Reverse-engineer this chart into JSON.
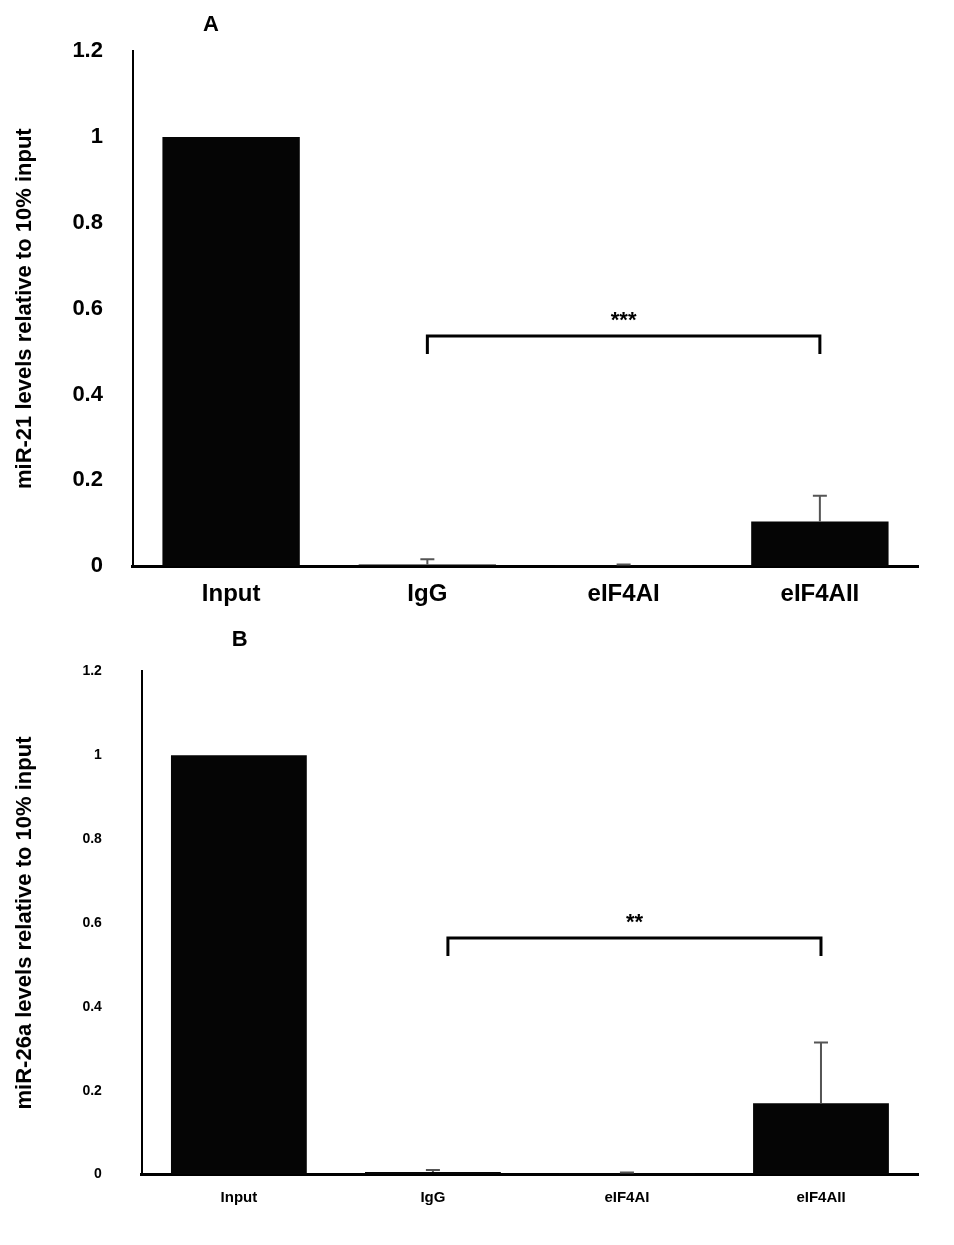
{
  "chart_data": [
    {
      "type": "bar",
      "title": "A",
      "ylabel": "miR-21 levels relative to 10% input",
      "categories": [
        "Input",
        "IgG",
        "eIF4AI",
        "eIF4AII"
      ],
      "values": [
        1,
        0.004,
        0.002,
        0.104
      ],
      "errors": [
        null,
        [
          0.004,
          0.016
        ],
        [
          0.002,
          0.004
        ],
        [
          0.104,
          0.164
        ]
      ],
      "color": "#050505",
      "ylim": [
        0,
        1.2
      ],
      "yticks": [
        0,
        0.2,
        0.4,
        0.6,
        0.8,
        1,
        1.2
      ],
      "grid": false,
      "legend": false,
      "annotations": [
        "***"
      ]
    },
    {
      "type": "bar",
      "title": "B",
      "ylabel": "miR-26a levels relative to 10% input",
      "categories": [
        "Input",
        "IgG",
        "eIF4AI",
        "eIF4AII"
      ],
      "values": [
        1,
        0.006,
        0.003,
        0.17
      ],
      "errors": [
        null,
        [
          0.006,
          0.011
        ],
        [
          0.003,
          0.005
        ],
        [
          0.17,
          0.315
        ]
      ],
      "color": "#050505",
      "ylim": [
        0,
        1.2
      ],
      "yticks": [
        0,
        0.2,
        0.4,
        0.6,
        0.8,
        1,
        1.2
      ],
      "grid": false,
      "legend": false,
      "annotations": [
        "**"
      ]
    }
  ]
}
